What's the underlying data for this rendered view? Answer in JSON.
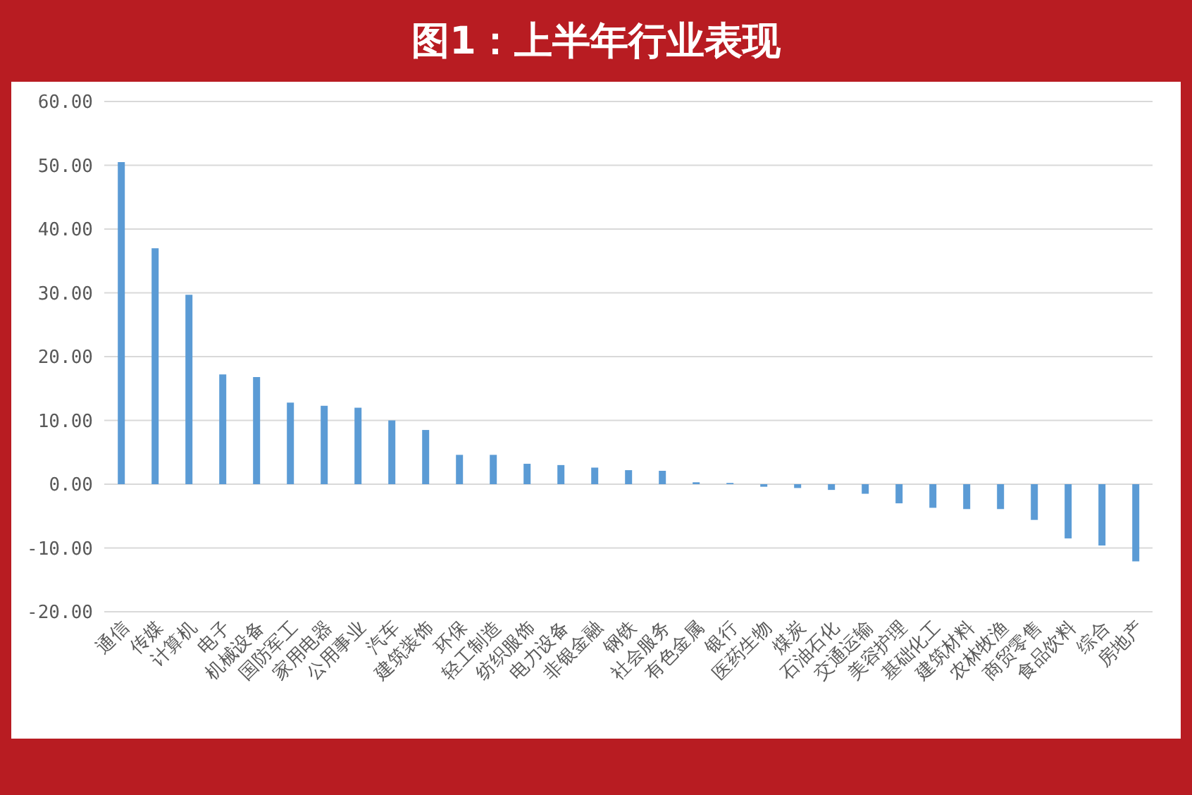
{
  "chart_data": {
    "type": "bar",
    "title": "图1：上半年行业表现",
    "categories": [
      "通信",
      "传媒",
      "计算机",
      "电子",
      "机械设备",
      "国防军工",
      "家用电器",
      "公用事业",
      "汽车",
      "建筑装饰",
      "环保",
      "轻工制造",
      "纺织服饰",
      "电力设备",
      "非银金融",
      "钢铁",
      "社会服务",
      "有色金属",
      "银行",
      "医药生物",
      "煤炭",
      "石油石化",
      "交通运输",
      "美容护理",
      "基础化工",
      "建筑材料",
      "农林牧渔",
      "商贸零售",
      "食品饮料",
      "综合",
      "房地产"
    ],
    "values": [
      50.5,
      37.0,
      29.7,
      17.2,
      16.8,
      12.8,
      12.3,
      12.0,
      10.0,
      8.5,
      4.6,
      4.6,
      3.2,
      3.0,
      2.6,
      2.2,
      2.1,
      0.3,
      0.2,
      -0.4,
      -0.6,
      -0.9,
      -1.5,
      -3.0,
      -3.7,
      -3.9,
      -3.9,
      -5.6,
      -8.5,
      -9.6,
      -12.1
    ],
    "color": "#5b9bd5",
    "ylim": [
      -20,
      60
    ],
    "yticks": [
      {
        "value": -20,
        "label": "-20.00"
      },
      {
        "value": -10,
        "label": "-10.00"
      },
      {
        "value": 0,
        "label": "0.00"
      },
      {
        "value": 10,
        "label": "10.00"
      },
      {
        "value": 20,
        "label": "20.00"
      },
      {
        "value": 30,
        "label": "30.00"
      },
      {
        "value": 40,
        "label": "40.00"
      },
      {
        "value": 50,
        "label": "50.00"
      },
      {
        "value": 60,
        "label": "60.00"
      }
    ],
    "grid": "y"
  }
}
